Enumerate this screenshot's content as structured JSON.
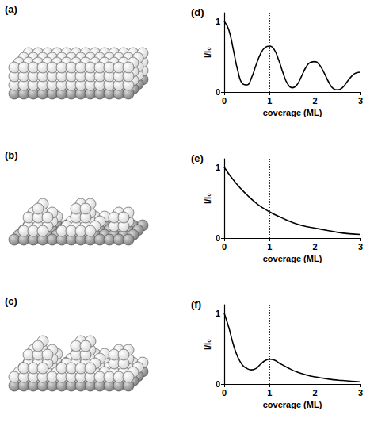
{
  "illustrations": [
    {
      "label": "(a)"
    },
    {
      "label": "(b)"
    },
    {
      "label": "(c)"
    }
  ],
  "chart_data": [
    {
      "type": "line",
      "title": "(d)",
      "xlabel": "coverage (ML)",
      "ylabel": "I/I₀",
      "color": "#000000",
      "x": [
        0,
        0.1,
        0.2,
        0.3,
        0.4,
        0.5,
        0.6,
        0.7,
        0.8,
        0.9,
        1.0,
        1.1,
        1.2,
        1.3,
        1.4,
        1.5,
        1.6,
        1.7,
        1.8,
        1.9,
        2.0,
        2.1,
        2.2,
        2.3,
        2.4,
        2.5,
        2.6,
        2.7,
        2.8,
        2.9,
        3.0
      ],
      "values": [
        1.0,
        0.88,
        0.6,
        0.3,
        0.12,
        0.1,
        0.2,
        0.38,
        0.54,
        0.63,
        0.65,
        0.6,
        0.45,
        0.26,
        0.11,
        0.06,
        0.1,
        0.22,
        0.35,
        0.42,
        0.43,
        0.38,
        0.27,
        0.14,
        0.05,
        0.03,
        0.06,
        0.14,
        0.22,
        0.27,
        0.28
      ],
      "xlim": [
        0,
        3
      ],
      "ylim": [
        0,
        1.12
      ],
      "xticks": [
        0,
        1,
        2,
        3
      ],
      "yticks": [
        0,
        1
      ],
      "grid": true
    },
    {
      "type": "line",
      "title": "(e)",
      "xlabel": "coverage (ML)",
      "ylabel": "I/I₀",
      "color": "#000000",
      "x": [
        0,
        0.25,
        0.5,
        0.75,
        1.0,
        1.25,
        1.5,
        1.75,
        2.0,
        2.25,
        2.5,
        2.75,
        3.0
      ],
      "values": [
        1.0,
        0.78,
        0.61,
        0.47,
        0.37,
        0.29,
        0.22,
        0.17,
        0.14,
        0.11,
        0.08,
        0.06,
        0.05
      ],
      "xlim": [
        0,
        3
      ],
      "ylim": [
        0,
        1.12
      ],
      "xticks": [
        0,
        1,
        2,
        3
      ],
      "yticks": [
        0,
        1
      ],
      "grid": true
    },
    {
      "type": "line",
      "title": "(f)",
      "xlabel": "coverage (ML)",
      "ylabel": "I/I₀",
      "color": "#000000",
      "x": [
        0,
        0.1,
        0.2,
        0.3,
        0.4,
        0.5,
        0.6,
        0.7,
        0.8,
        0.9,
        1.0,
        1.1,
        1.2,
        1.4,
        1.6,
        1.8,
        2.0,
        2.2,
        2.4,
        2.6,
        2.8,
        3.0
      ],
      "values": [
        1.0,
        0.8,
        0.56,
        0.38,
        0.27,
        0.22,
        0.2,
        0.22,
        0.28,
        0.33,
        0.35,
        0.34,
        0.3,
        0.23,
        0.17,
        0.13,
        0.1,
        0.08,
        0.06,
        0.05,
        0.04,
        0.03
      ],
      "xlim": [
        0,
        3
      ],
      "ylim": [
        0,
        1.12
      ],
      "xticks": [
        0,
        1,
        2,
        3
      ],
      "yticks": [
        0,
        1
      ],
      "grid": true
    }
  ]
}
